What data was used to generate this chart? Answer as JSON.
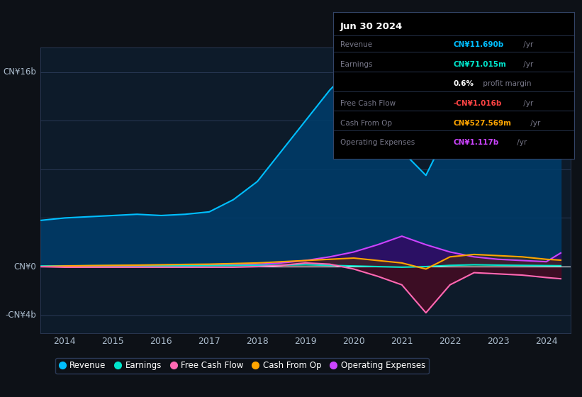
{
  "bg_color": "#0d1117",
  "plot_bg_color": "#0d1b2a",
  "years": [
    2013.5,
    2014.0,
    2014.5,
    2015.0,
    2015.5,
    2016.0,
    2016.5,
    2017.0,
    2017.5,
    2018.0,
    2018.5,
    2019.0,
    2019.5,
    2020.0,
    2020.5,
    2021.0,
    2021.5,
    2022.0,
    2022.5,
    2023.0,
    2023.5,
    2024.0,
    2024.3
  ],
  "revenue": [
    3.8,
    4.0,
    4.1,
    4.2,
    4.3,
    4.2,
    4.3,
    4.5,
    5.5,
    7.0,
    9.5,
    12.0,
    14.5,
    16.5,
    15.0,
    9.5,
    7.5,
    11.5,
    13.0,
    12.0,
    11.5,
    11.0,
    11.7
  ],
  "earnings": [
    0.05,
    0.06,
    0.07,
    0.08,
    0.08,
    0.07,
    0.07,
    0.08,
    0.09,
    0.1,
    0.12,
    0.15,
    0.1,
    0.05,
    0.0,
    -0.05,
    0.0,
    0.1,
    0.15,
    0.12,
    0.1,
    0.08,
    0.07
  ],
  "free_cash_flow": [
    0.0,
    -0.05,
    -0.05,
    -0.05,
    -0.05,
    -0.05,
    -0.05,
    -0.05,
    -0.05,
    0.0,
    0.1,
    0.3,
    0.2,
    -0.2,
    -0.8,
    -1.5,
    -3.8,
    -1.5,
    -0.5,
    -0.6,
    -0.7,
    -0.9,
    -1.0
  ],
  "cash_from_op": [
    0.0,
    0.05,
    0.08,
    0.1,
    0.12,
    0.15,
    0.18,
    0.2,
    0.25,
    0.3,
    0.4,
    0.5,
    0.6,
    0.7,
    0.5,
    0.3,
    -0.2,
    0.8,
    1.0,
    0.9,
    0.8,
    0.6,
    0.53
  ],
  "operating_expenses": [
    0.0,
    0.02,
    0.03,
    0.05,
    0.07,
    0.08,
    0.1,
    0.12,
    0.15,
    0.2,
    0.3,
    0.5,
    0.8,
    1.2,
    1.8,
    2.5,
    1.8,
    1.2,
    0.8,
    0.6,
    0.5,
    0.4,
    1.12
  ],
  "ylim": [
    -5.5,
    18.0
  ],
  "xlim": [
    2013.5,
    2024.5
  ],
  "xtick_labels": [
    "2014",
    "2015",
    "2016",
    "2017",
    "2018",
    "2019",
    "2020",
    "2021",
    "2022",
    "2023",
    "2024"
  ],
  "xtick_positions": [
    2014,
    2015,
    2016,
    2017,
    2018,
    2019,
    2020,
    2021,
    2022,
    2023,
    2024
  ],
  "legend_items": [
    {
      "label": "Revenue",
      "color": "#00bfff"
    },
    {
      "label": "Earnings",
      "color": "#00e5cc"
    },
    {
      "label": "Free Cash Flow",
      "color": "#ff69b4"
    },
    {
      "label": "Cash From Op",
      "color": "#ffa500"
    },
    {
      "label": "Operating Expenses",
      "color": "#cc44ff"
    }
  ],
  "revenue_color": "#00bfff",
  "earnings_color": "#00e5cc",
  "free_cash_flow_color": "#ff69b4",
  "cash_from_op_color": "#ffa500",
  "operating_expenses_color": "#cc44ff",
  "revenue_fill_color": "#003d6b",
  "earnings_fill_color": "#004d44",
  "free_cash_flow_fill_color": "#6b0020",
  "cash_from_op_fill_color": "#4d3000",
  "operating_expenses_fill_color": "#3d0066",
  "info_rows": [
    {
      "label": "Revenue",
      "value": "CN¥11.690b",
      "suffix": " /yr",
      "value_color": "#00bfff"
    },
    {
      "label": "Earnings",
      "value": "CN¥71.015m",
      "suffix": " /yr",
      "value_color": "#00e5cc"
    },
    {
      "label": "",
      "value": "0.6%",
      "suffix": " profit margin",
      "value_color": "white"
    },
    {
      "label": "Free Cash Flow",
      "value": "-CN¥1.016b",
      "suffix": " /yr",
      "value_color": "#ff4444"
    },
    {
      "label": "Cash From Op",
      "value": "CN¥527.569m",
      "suffix": " /yr",
      "value_color": "#ffa500"
    },
    {
      "label": "Operating Expenses",
      "value": "CN¥1.117b",
      "suffix": " /yr",
      "value_color": "#cc44ff"
    }
  ],
  "grid_lines": [
    16,
    12,
    8,
    4,
    0,
    -4
  ],
  "ylabel_items": [
    {
      "val": 16,
      "label": "CN¥16b"
    },
    {
      "val": 0,
      "label": "CN¥0"
    },
    {
      "val": -4,
      "label": "-CN¥4b"
    }
  ]
}
